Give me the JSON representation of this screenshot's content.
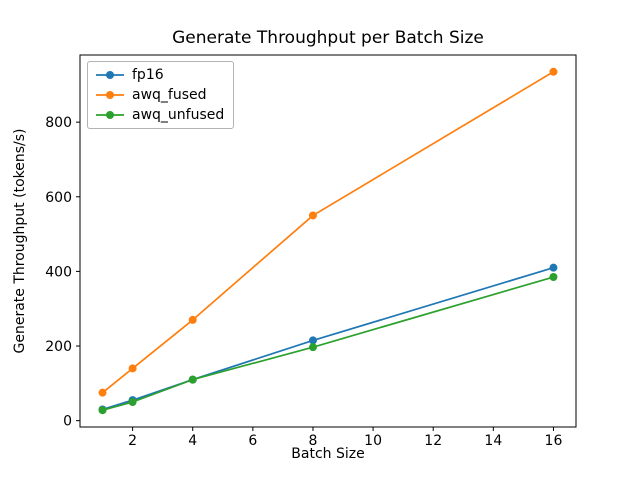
{
  "chart_data": {
    "type": "line",
    "title": "Generate Throughput per Batch Size",
    "xlabel": "Batch Size",
    "ylabel": "Generate Throughput (tokens/s)",
    "x": [
      1,
      2,
      4,
      8,
      16
    ],
    "series": [
      {
        "name": "fp16",
        "color": "#1f77b4",
        "values": [
          30,
          55,
          110,
          215,
          410
        ]
      },
      {
        "name": "awq_fused",
        "color": "#ff7f0e",
        "values": [
          75,
          140,
          270,
          550,
          935
        ]
      },
      {
        "name": "awq_unfused",
        "color": "#2ca02c",
        "values": [
          28,
          50,
          110,
          197,
          385
        ]
      }
    ],
    "xlim": [
      0.25,
      16.75
    ],
    "ylim": [
      -17,
      980
    ],
    "xticks": [
      2,
      4,
      6,
      8,
      10,
      12,
      14,
      16
    ],
    "yticks": [
      0,
      200,
      400,
      600,
      800
    ],
    "legend_position": "upper left",
    "grid": false,
    "marker": "o"
  }
}
